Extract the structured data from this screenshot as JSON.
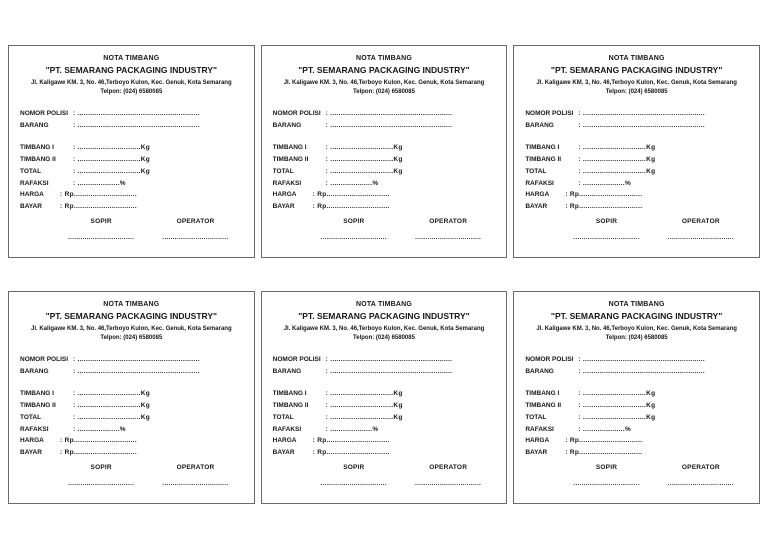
{
  "page": {
    "card_count": 6,
    "background": "#ffffff",
    "border_color": "#6a6a6a"
  },
  "note": {
    "title": "NOTA TIMBANG",
    "company": "\"PT. SEMARANG PACKAGING INDUSTRY\"",
    "address": "Jl. Kaligawe KM. 3, No. 46,Terboyo Kulon, Kec. Genuk, Kota Semarang",
    "phone": "Telpon: (024) 6580085",
    "fields": [
      {
        "label": "NOMOR POLISI",
        "value": ": .........................................................."
      },
      {
        "label": "BARANG",
        "value": ": .........................................................."
      },
      {
        "label": "TIMBANG I",
        "value": ": ..............................Kg"
      },
      {
        "label": "TIMBANG II",
        "value": ": ..............................Kg"
      },
      {
        "label": "TOTAL",
        "value": ": ..............................Kg"
      },
      {
        "label": "RAFAKSI",
        "value": ": ....................%"
      },
      {
        "label": "HARGA",
        "value": ": Rp.............................."
      },
      {
        "label": "BAYAR",
        "value": ": Rp.............................."
      }
    ],
    "signatures": {
      "left_label": "SOPIR",
      "right_label": "OPERATOR",
      "line": "................................"
    }
  }
}
